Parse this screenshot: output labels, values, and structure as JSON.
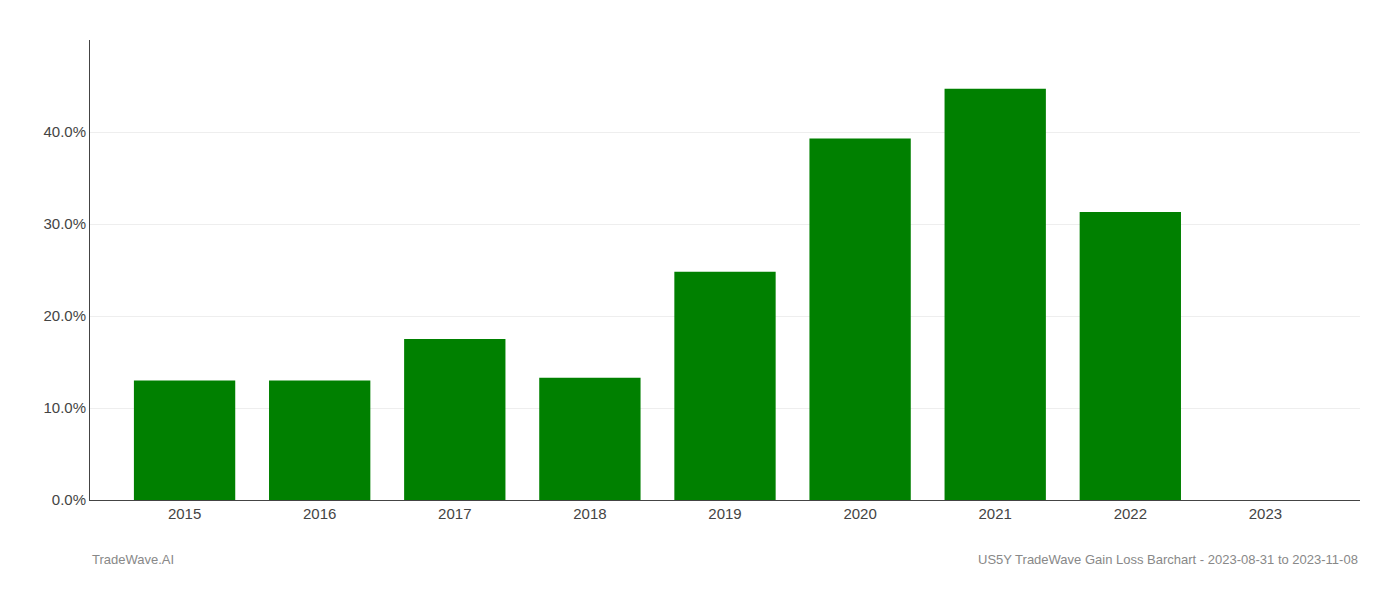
{
  "chart_data": {
    "type": "bar",
    "x": [
      2015,
      2016,
      2017,
      2018,
      2019,
      2020,
      2021,
      2022,
      2023
    ],
    "values": [
      0.13,
      0.13,
      0.175,
      0.133,
      0.248,
      0.393,
      0.447,
      0.313,
      null
    ],
    "color": "#008000",
    "xlim": [
      2014.3,
      2023.7
    ],
    "xticks": [
      2015,
      2016,
      2017,
      2018,
      2019,
      2020,
      2021,
      2022,
      2023
    ],
    "ylim": [
      0,
      0.5
    ],
    "yticks": [
      {
        "value": 0.0,
        "label": "0.0%"
      },
      {
        "value": 0.1,
        "label": "10.0%"
      },
      {
        "value": 0.2,
        "label": "20.0%"
      },
      {
        "value": 0.3,
        "label": "30.0%"
      },
      {
        "value": 0.4,
        "label": "40.0%"
      }
    ],
    "grid": true,
    "annotations": [
      "TradeWave.AI",
      "US5Y TradeWave Gain Loss Barchart - 2023-08-31 to 2023-11-08"
    ]
  }
}
